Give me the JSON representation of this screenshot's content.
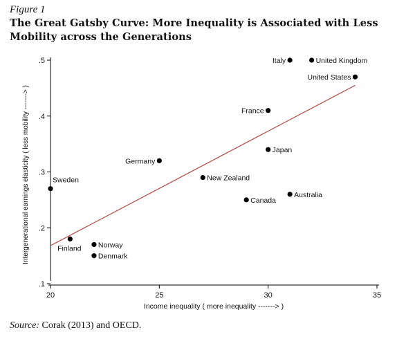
{
  "figure": {
    "label": "Figure 1",
    "title": "The Great Gatsby Curve: More Inequality is Associated with Less Mobility across the Generations"
  },
  "source": {
    "label": "Source:",
    "text": "Corak (2013) and OECD."
  },
  "chart_data": {
    "type": "scatter",
    "xlabel": "Income inequality ( more inequality -------> )",
    "ylabel": "Intergenerational earnings elasticity ( less mobility -------> )",
    "xlim": [
      20,
      35
    ],
    "ylim": [
      0.1,
      0.5
    ],
    "xticks": [
      20,
      25,
      30,
      35
    ],
    "xtick_labels": [
      "20",
      "25",
      "30",
      "35"
    ],
    "yticks": [
      0.1,
      0.2,
      0.3,
      0.4,
      0.5
    ],
    "ytick_labels": [
      ".1",
      ".2",
      ".3",
      ".4",
      ".5"
    ],
    "grid": false,
    "points": [
      {
        "label": "Italy",
        "x": 31.0,
        "y": 0.5,
        "label_side": "left"
      },
      {
        "label": "United Kingdom",
        "x": 32.0,
        "y": 0.5,
        "label_side": "right"
      },
      {
        "label": "United States",
        "x": 34.0,
        "y": 0.47,
        "label_side": "left"
      },
      {
        "label": "France",
        "x": 30.0,
        "y": 0.41,
        "label_side": "left"
      },
      {
        "label": "Japan",
        "x": 30.0,
        "y": 0.34,
        "label_side": "right"
      },
      {
        "label": "Germany",
        "x": 25.0,
        "y": 0.32,
        "label_side": "left"
      },
      {
        "label": "New Zealand",
        "x": 27.0,
        "y": 0.29,
        "label_side": "right"
      },
      {
        "label": "Sweden",
        "x": 20.0,
        "y": 0.27,
        "label_side": "above-right"
      },
      {
        "label": "Canada",
        "x": 29.0,
        "y": 0.25,
        "label_side": "right"
      },
      {
        "label": "Australia",
        "x": 31.0,
        "y": 0.26,
        "label_side": "right"
      },
      {
        "label": "Finland",
        "x": 20.9,
        "y": 0.18,
        "label_side": "below"
      },
      {
        "label": "Norway",
        "x": 22.0,
        "y": 0.17,
        "label_side": "right"
      },
      {
        "label": "Denmark",
        "x": 22.0,
        "y": 0.15,
        "label_side": "right"
      }
    ],
    "fit_line": {
      "x": [
        20.0,
        34.0
      ],
      "y": [
        0.168,
        0.455
      ],
      "color": "#b8514d"
    },
    "colors": {
      "points": "#000000",
      "axes": "#000000"
    }
  }
}
